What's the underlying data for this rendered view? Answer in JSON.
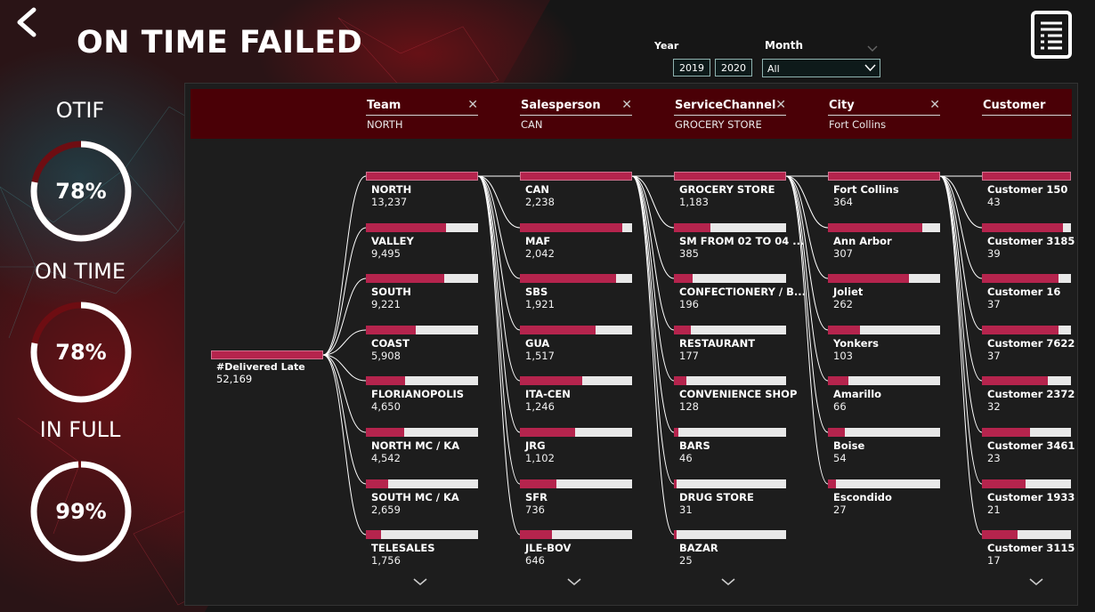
{
  "page": {
    "title": "ON TIME FAILED"
  },
  "kpis": [
    {
      "label": "OTIF",
      "value": "78%",
      "fill_pct": 78
    },
    {
      "label": "ON TIME",
      "value": "78%",
      "fill_pct": 78
    },
    {
      "label": "IN FULL",
      "value": "99%",
      "fill_pct": 99
    }
  ],
  "filters": {
    "year_label": "Year",
    "years": [
      "2019",
      "2020"
    ],
    "month_label": "Month",
    "month_value": "All"
  },
  "tree": {
    "root": {
      "label": "#Delivered Late",
      "value": "52,169"
    },
    "levels": [
      {
        "header": "Team",
        "selected": "NORTH",
        "closable": true,
        "nodes": [
          {
            "label": "NORTH",
            "value": "13,237",
            "fill": 1.0
          },
          {
            "label": "VALLEY",
            "value": "9,495",
            "fill": 0.717
          },
          {
            "label": "SOUTH",
            "value": "9,221",
            "fill": 0.697
          },
          {
            "label": "COAST",
            "value": "5,908",
            "fill": 0.446
          },
          {
            "label": "FLORIANOPOLIS",
            "value": "4,650",
            "fill": 0.351
          },
          {
            "label": "NORTH MC / KA",
            "value": "4,542",
            "fill": 0.343
          },
          {
            "label": "SOUTH MC / KA",
            "value": "2,659",
            "fill": 0.201
          },
          {
            "label": "TELESALES",
            "value": "1,756",
            "fill": 0.133
          }
        ]
      },
      {
        "header": "Salesperson",
        "selected": "CAN",
        "closable": true,
        "nodes": [
          {
            "label": "CAN",
            "value": "2,238",
            "fill": 1.0
          },
          {
            "label": "MAF",
            "value": "2,042",
            "fill": 0.912
          },
          {
            "label": "SBS",
            "value": "1,921",
            "fill": 0.858
          },
          {
            "label": "GUA",
            "value": "1,517",
            "fill": 0.678
          },
          {
            "label": "ITA-CEN",
            "value": "1,246",
            "fill": 0.557
          },
          {
            "label": "JRG",
            "value": "1,102",
            "fill": 0.492
          },
          {
            "label": "SFR",
            "value": "736",
            "fill": 0.329
          },
          {
            "label": "JLE-BOV",
            "value": "646",
            "fill": 0.289
          }
        ]
      },
      {
        "header": "ServiceChannel",
        "selected": "GROCERY STORE",
        "closable": true,
        "nodes": [
          {
            "label": "GROCERY STORE",
            "value": "1,183",
            "fill": 1.0
          },
          {
            "label": "SM FROM 02 TO 04 ...",
            "value": "385",
            "fill": 0.325
          },
          {
            "label": "CONFECTIONERY / B...",
            "value": "196",
            "fill": 0.166
          },
          {
            "label": "RESTAURANT",
            "value": "177",
            "fill": 0.15
          },
          {
            "label": "CONVENIENCE SHOP",
            "value": "128",
            "fill": 0.108
          },
          {
            "label": "BARS",
            "value": "46",
            "fill": 0.039
          },
          {
            "label": "DRUG STORE",
            "value": "31",
            "fill": 0.026
          },
          {
            "label": "BAZAR",
            "value": "25",
            "fill": 0.021
          }
        ]
      },
      {
        "header": "City",
        "selected": "Fort Collins",
        "closable": true,
        "nodes": [
          {
            "label": "Fort Collins",
            "value": "364",
            "fill": 1.0
          },
          {
            "label": "Ann Arbor",
            "value": "307",
            "fill": 0.843
          },
          {
            "label": "Joliet",
            "value": "262",
            "fill": 0.72
          },
          {
            "label": "Yonkers",
            "value": "103",
            "fill": 0.283
          },
          {
            "label": "Amarillo",
            "value": "66",
            "fill": 0.181
          },
          {
            "label": "Boise",
            "value": "54",
            "fill": 0.148
          },
          {
            "label": "Escondido",
            "value": "27",
            "fill": 0.074
          }
        ]
      },
      {
        "header": "Customer",
        "selected": "",
        "closable": false,
        "nodes": [
          {
            "label": "Customer 150",
            "value": "43",
            "fill": 1.0
          },
          {
            "label": "Customer 3185",
            "value": "39",
            "fill": 0.907
          },
          {
            "label": "Customer 16",
            "value": "37",
            "fill": 0.86
          },
          {
            "label": "Customer 7622",
            "value": "37",
            "fill": 0.86
          },
          {
            "label": "Customer 2372",
            "value": "32",
            "fill": 0.744
          },
          {
            "label": "Customer 3461",
            "value": "23",
            "fill": 0.535
          },
          {
            "label": "Customer 1933",
            "value": "21",
            "fill": 0.488
          },
          {
            "label": "Customer 3115",
            "value": "17",
            "fill": 0.395
          }
        ]
      }
    ]
  },
  "colors": {
    "accent": "#b5244d",
    "header_bg": "#4a0006",
    "panel_bg": "#1d1d1d",
    "bar_track": "#e8e8e8",
    "gauge_fill": "#6e0d12",
    "gauge_track": "#ffffff"
  },
  "icons": {
    "back": "chevron-left-icon",
    "report": "report-document-icon",
    "expand": "chevron-down-icon",
    "close": "close-icon"
  }
}
